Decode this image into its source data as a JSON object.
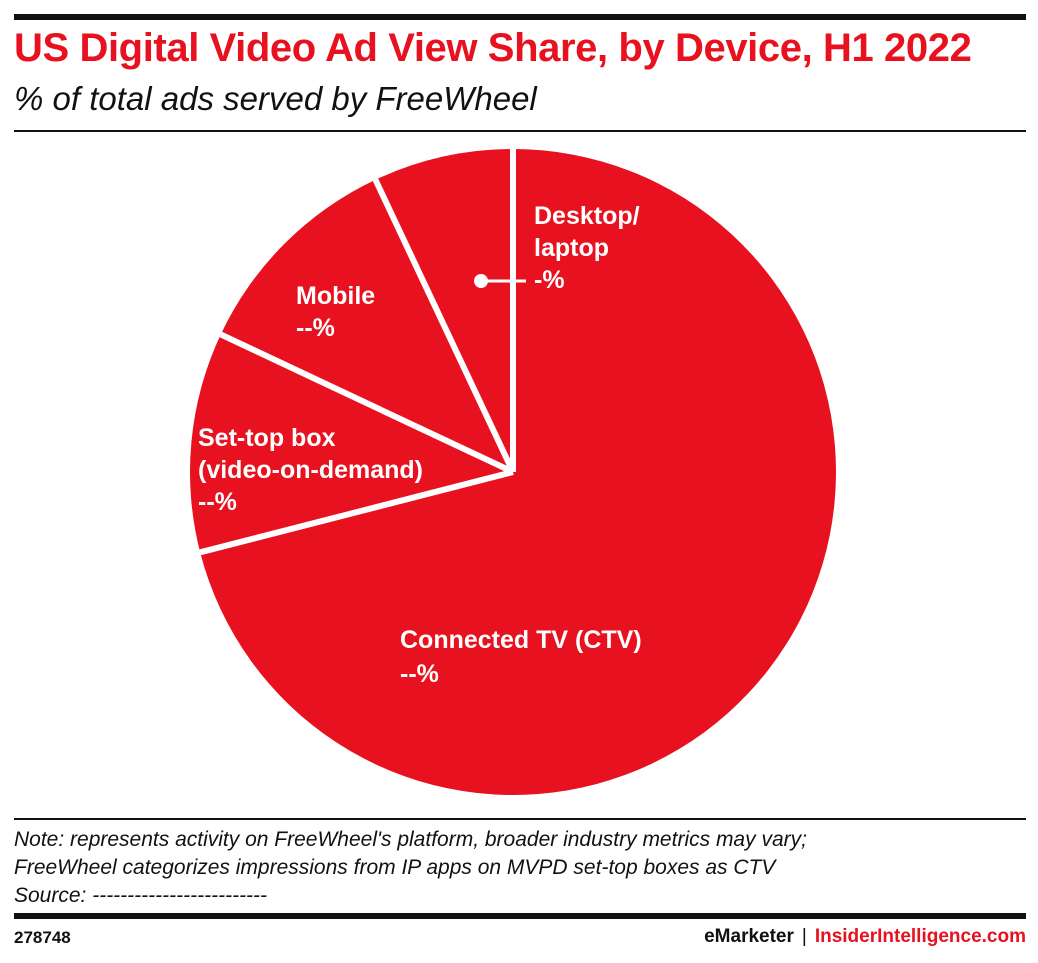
{
  "header": {
    "title": "US Digital Video Ad View Share, by Device, H1 2022",
    "subtitle": "% of total ads served by FreeWheel"
  },
  "chart_data": {
    "type": "pie",
    "slices": [
      {
        "name": "Connected TV (CTV)",
        "value": 71,
        "label_value": "--%"
      },
      {
        "name": "Set-top box (video-on-demand)",
        "value": 11,
        "label_value": "--%"
      },
      {
        "name": "Mobile",
        "value": 11,
        "label_value": "--%"
      },
      {
        "name": "Desktop/ laptop",
        "value": 7,
        "label_value": "-%"
      }
    ],
    "colors": {
      "slice": "#e8111f",
      "separator": "#ffffff",
      "label": "#ffffff"
    }
  },
  "notes": {
    "line1": "Note: represents activity on FreeWheel's platform, broader industry metrics may vary;",
    "line2": "FreeWheel categorizes impressions from IP apps on MVPD set-top boxes as CTV",
    "source": "Source: -------------------------"
  },
  "footer": {
    "chart_id": "278748",
    "brand_emarketer": "eMarketer",
    "brand_separator": "|",
    "brand_insider": "InsiderIntelligence.com"
  },
  "colors": {
    "accent": "#e8111f",
    "text": "#111111",
    "background": "#ffffff"
  }
}
